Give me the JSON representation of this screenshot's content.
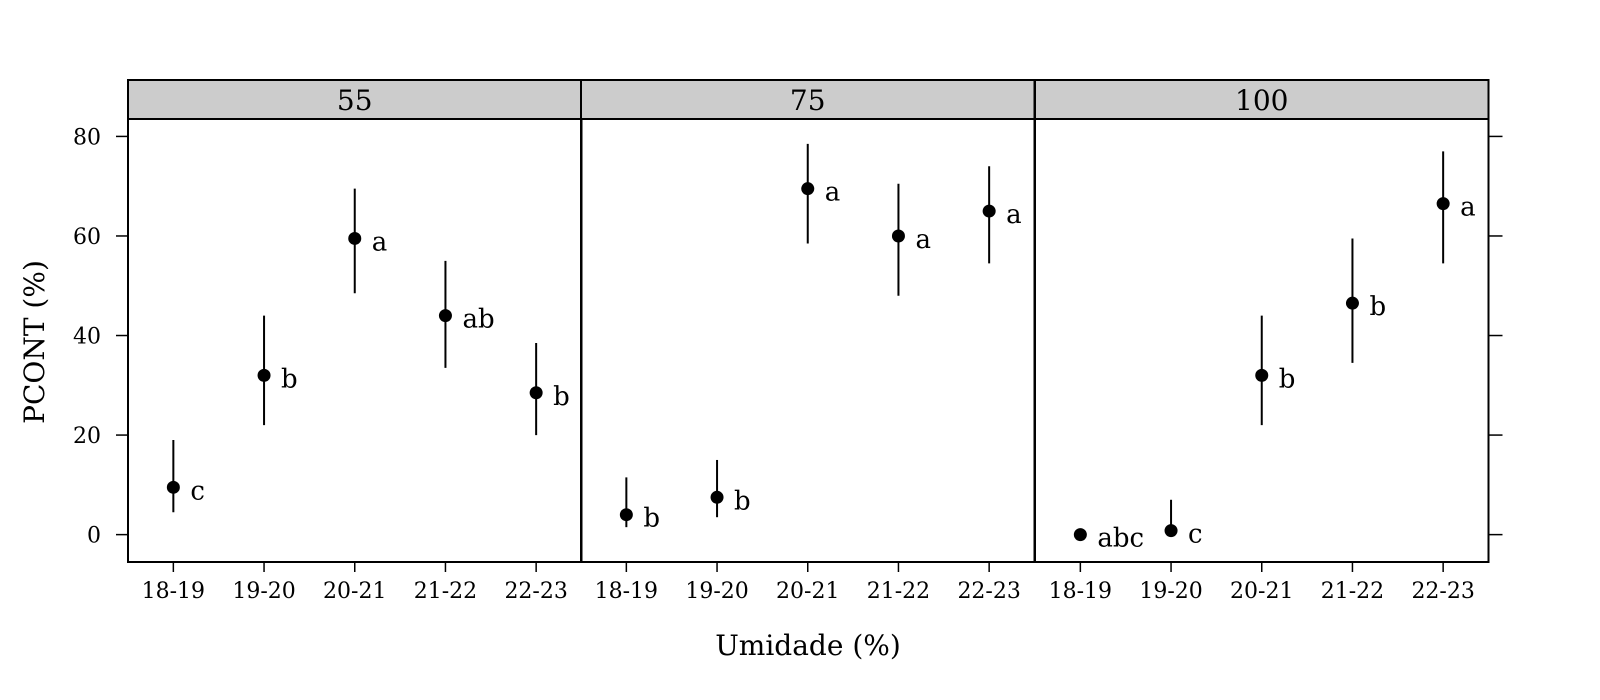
{
  "chart_data": {
    "type": "scatter",
    "xlabel": "Umidade (%)",
    "ylabel": "PCONT (%)",
    "ylim": [
      -5.5,
      83.5
    ],
    "yticks": [
      0,
      20,
      40,
      60,
      80
    ],
    "categories": [
      "18-19",
      "19-20",
      "20-21",
      "21-22",
      "22-23"
    ],
    "panels": [
      {
        "strip": "55",
        "points": [
          {
            "x": "18-19",
            "y": 9.5,
            "low": 4.5,
            "high": 19.0,
            "letter": "c"
          },
          {
            "x": "19-20",
            "y": 32.0,
            "low": 22.0,
            "high": 44.0,
            "letter": "b"
          },
          {
            "x": "20-21",
            "y": 59.5,
            "low": 48.5,
            "high": 69.5,
            "letter": "a"
          },
          {
            "x": "21-22",
            "y": 44.0,
            "low": 33.5,
            "high": 55.0,
            "letter": "ab"
          },
          {
            "x": "22-23",
            "y": 28.5,
            "low": 20.0,
            "high": 38.5,
            "letter": "b"
          }
        ]
      },
      {
        "strip": "75",
        "points": [
          {
            "x": "18-19",
            "y": 4.0,
            "low": 1.5,
            "high": 11.5,
            "letter": "b"
          },
          {
            "x": "19-20",
            "y": 7.5,
            "low": 3.5,
            "high": 15.0,
            "letter": "b"
          },
          {
            "x": "20-21",
            "y": 69.5,
            "low": 58.5,
            "high": 78.5,
            "letter": "a"
          },
          {
            "x": "21-22",
            "y": 60.0,
            "low": 48.0,
            "high": 70.5,
            "letter": "a"
          },
          {
            "x": "22-23",
            "y": 65.0,
            "low": 54.5,
            "high": 74.0,
            "letter": "a"
          }
        ]
      },
      {
        "strip": "100",
        "points": [
          {
            "x": "18-19",
            "y": 0.0,
            "low": 0.0,
            "high": 0.0,
            "letter": "abc"
          },
          {
            "x": "19-20",
            "y": 0.8,
            "low": 0.0,
            "high": 7.0,
            "letter": "c"
          },
          {
            "x": "20-21",
            "y": 32.0,
            "low": 22.0,
            "high": 44.0,
            "letter": "b"
          },
          {
            "x": "21-22",
            "y": 46.5,
            "low": 34.5,
            "high": 59.5,
            "letter": "b"
          },
          {
            "x": "22-23",
            "y": 66.5,
            "low": 54.5,
            "high": 77.0,
            "letter": "a"
          }
        ]
      }
    ],
    "grid": false,
    "colors": {
      "strip_bg": "#cccccc",
      "points": "#000000"
    }
  }
}
